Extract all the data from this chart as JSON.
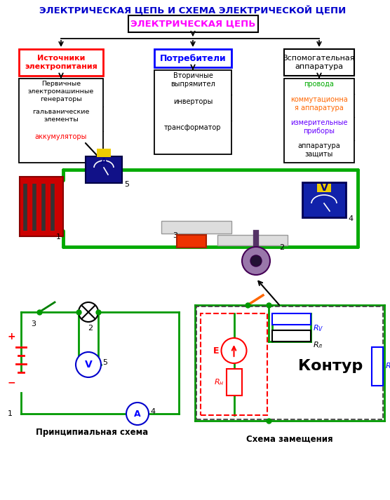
{
  "title": "ЭЛЕКТРИЧЕСКАЯ ЦЕПЬ И СХЕМА ЭЛЕКТРИЧЕСКОЙ ЦЕПИ",
  "title_color": "#0000CC",
  "bg_color": "#FFFFFF",
  "root_box_text": "ЭЛЕКТРИЧЕСКАЯ ЦЕПЬ",
  "root_box_color": "#FF00FF",
  "branch1_text": "Источники\nэлектропитания",
  "branch1_color": "#FF0000",
  "branch2_text": "Потребители",
  "branch2_color": "#0000FF",
  "branch3_text": "Вспомогательная\nаппаратура",
  "branch3_color": "#000000",
  "sub1_line1": "Первичные",
  "sub1_line2": "электромашинные",
  "sub1_line3": "генераторы",
  "sub1_line4": "гальванические",
  "sub1_line5": "элементы",
  "sub1_line6": "аккумуляторы",
  "sub2_line1": "Вторичные",
  "sub2_line2": "выпрямител",
  "sub2_line3": "инверторы",
  "sub2_line4": "трансформатор",
  "sub3_line1": "провода",
  "sub3_line1_color": "#00AA00",
  "sub3_line2a": "коммутационна",
  "sub3_line2b": "я аппаратура",
  "sub3_line2_color": "#FF6600",
  "sub3_line3a": "измерительные",
  "sub3_line3b": "приборы",
  "sub3_line3_color": "#6600FF",
  "sub3_line4a": "аппаратура",
  "sub3_line4b": "защиты",
  "sub3_line4_color": "#000000",
  "label_schematic": "Принципиальная схема",
  "label_equiv": "Схема замещения",
  "kontur_text": "Контур",
  "wire_green": "#00AA00",
  "wire_green2": "#009900",
  "red_color": "#FF0000",
  "blue_color": "#0000CC",
  "orange_color": "#FF6600"
}
